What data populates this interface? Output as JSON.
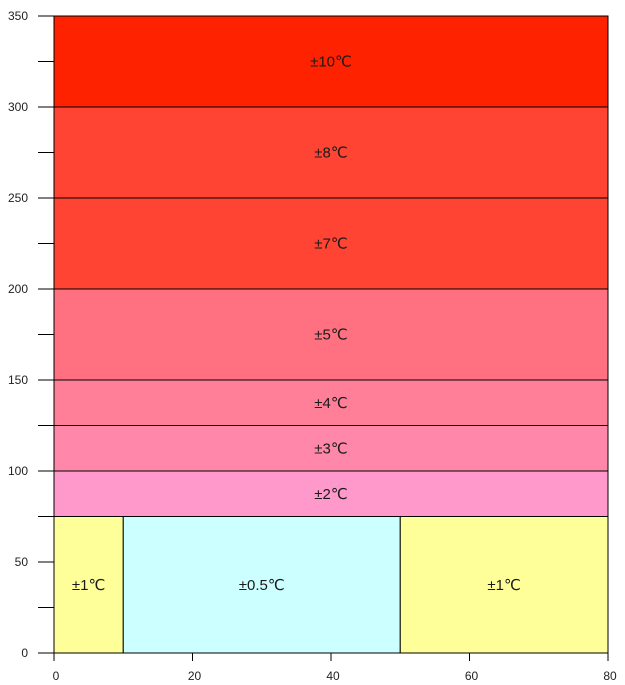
{
  "chart_data": {
    "type": "heatmap",
    "xlim": [
      0,
      80
    ],
    "ylim": [
      0,
      350
    ],
    "x_ticks": [
      0,
      20,
      40,
      60,
      80
    ],
    "y_ticks": [
      0,
      50,
      100,
      150,
      200,
      250,
      300,
      350
    ],
    "y_minor_ticks": [
      25,
      75,
      125,
      175,
      225,
      275,
      325
    ],
    "grid": false,
    "zones": [
      {
        "x0": 0,
        "x1": 10,
        "y0": 0,
        "y1": 75,
        "label": "±1℃",
        "color": "#ffff99"
      },
      {
        "x0": 10,
        "x1": 50,
        "y0": 0,
        "y1": 75,
        "label": "±0.5℃",
        "color": "#ccffff"
      },
      {
        "x0": 50,
        "x1": 80,
        "y0": 0,
        "y1": 75,
        "label": "±1℃",
        "color": "#ffff99"
      },
      {
        "x0": 0,
        "x1": 80,
        "y0": 75,
        "y1": 100,
        "label": "±2℃",
        "color": "#ff99cc"
      },
      {
        "x0": 0,
        "x1": 80,
        "y0": 100,
        "y1": 125,
        "label": "±3℃",
        "color": "#ff88aa"
      },
      {
        "x0": 0,
        "x1": 80,
        "y0": 125,
        "y1": 150,
        "label": "±4℃",
        "color": "#ff7f99"
      },
      {
        "x0": 0,
        "x1": 80,
        "y0": 150,
        "y1": 200,
        "label": "±5℃",
        "color": "#ff7080"
      },
      {
        "x0": 0,
        "x1": 80,
        "y0": 200,
        "y1": 250,
        "label": "±7℃",
        "color": "#ff4433"
      },
      {
        "x0": 0,
        "x1": 80,
        "y0": 250,
        "y1": 300,
        "label": "±8℃",
        "color": "#ff4433"
      },
      {
        "x0": 0,
        "x1": 80,
        "y0": 300,
        "y1": 350,
        "label": "±10℃",
        "color": "#ff2200"
      }
    ]
  }
}
